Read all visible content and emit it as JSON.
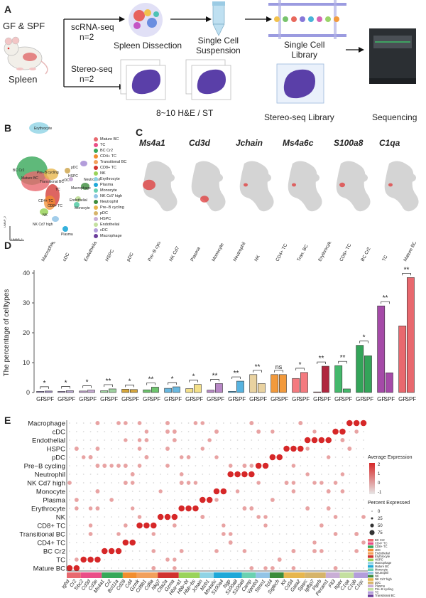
{
  "panel_labels": [
    "A",
    "B",
    "C",
    "D",
    "E"
  ],
  "panelA": {
    "source_label": "GF & SPF",
    "organism_label": "Spleen",
    "scrna_label": "scRNA-seq",
    "scrna_n": "n=2",
    "stereo_label": "Stereo-seq",
    "stereo_n": "n=2",
    "spleen_dissection": "Spleen Dissection",
    "single_cell_suspension": "Single Cell\nSuspension",
    "single_cell_library": "Single Cell\nLibrary",
    "he_st": "8~10 H&E / ST",
    "stereo_library": "Stereo-seq Library",
    "sequencing": "Sequencing"
  },
  "panelB": {
    "umap_labels": [
      "Erythrocyte",
      "BC Cr2",
      "Mature BC",
      "Pre−B cycling",
      "TC",
      "pDC",
      "HSPC",
      "cDC",
      "Neutrophil",
      "Transitional BC",
      "CD4+ TC",
      "CD8+ TC",
      "Endothelial",
      "NK",
      "Monocyte",
      "NK Cd7 high",
      "Plasma",
      "Macrophage"
    ],
    "axis_y": "UMAP_2",
    "axis_x": "UMAP_1",
    "legend": [
      {
        "name": "Mature BC",
        "color": "#e8696f"
      },
      {
        "name": "TC",
        "color": "#ea4e87"
      },
      {
        "name": "BC Cr2",
        "color": "#37a859"
      },
      {
        "name": "CD4+ TC",
        "color": "#f28e2f"
      },
      {
        "name": "Transitional BC",
        "color": "#f2a05c"
      },
      {
        "name": "CD8+ TC",
        "color": "#d1322e"
      },
      {
        "name": "NK",
        "color": "#9ad35a"
      },
      {
        "name": "Erythrocyte",
        "color": "#8fd3e5"
      },
      {
        "name": "Plasma",
        "color": "#1fa8d8"
      },
      {
        "name": "Monocyte",
        "color": "#6bd1b1"
      },
      {
        "name": "NK Cd7 high",
        "color": "#92c4e6"
      },
      {
        "name": "Neutrophil",
        "color": "#3c8c3c"
      },
      {
        "name": "Pre−B cycling",
        "color": "#e7b64e"
      },
      {
        "name": "pDC",
        "color": "#d6b46a"
      },
      {
        "name": "HSPC",
        "color": "#c9aed6"
      },
      {
        "name": "Endothelial",
        "color": "#c4e0a0"
      },
      {
        "name": "cDC",
        "color": "#b39ddb"
      },
      {
        "name": "Macrophage",
        "color": "#6a3d9a"
      }
    ]
  },
  "panelC": {
    "genes": [
      "Ms4a1",
      "Cd3d",
      "Jchain",
      "Ms4a6c",
      "S100a8",
      "C1qa"
    ]
  },
  "chart_data": [
    {
      "type": "bar",
      "title": "",
      "ylabel": "The percentage of celltypes",
      "xlabel": "",
      "ylim": [
        0,
        40
      ],
      "yticks": [
        0,
        10,
        20,
        30,
        40
      ],
      "group_labels": [
        "GF",
        "SPF"
      ],
      "categories": [
        "Macrophage",
        "cDC",
        "Endothelial",
        "HSPC",
        "pDC",
        "Pre−B cycling",
        "NK Cd7",
        "Plasma",
        "Monocyte",
        "Neutrophil",
        "NK",
        "CD4+ TC",
        "Tran. BC",
        "Erythrocyte",
        "CD8+ TC",
        "BC Cr2",
        "TC",
        "Mature BC"
      ],
      "colors": [
        "#a998c9",
        "#b7a4cf",
        "#c6a9d3",
        "#9fd2a0",
        "#d6a73c",
        "#6ec56e",
        "#68b8e0",
        "#f3e08a",
        "#b888c6",
        "#57b3e0",
        "#e9d2a0",
        "#f29a3c",
        "#f47a7f",
        "#b0273f",
        "#45b86c",
        "#33a459",
        "#a54aa8",
        "#e8686e"
      ],
      "series": [
        {
          "name": "GF",
          "values": [
            0.4,
            0.4,
            0.5,
            0.6,
            1.1,
            0.9,
            1.4,
            1.3,
            0.8,
            0.4,
            6.0,
            6.0,
            4.7,
            0.2,
            9.0,
            15.8,
            29.0,
            22.3
          ]
        },
        {
          "name": "SPF",
          "values": [
            0.5,
            0.6,
            0.8,
            1.2,
            1.0,
            1.8,
            1.9,
            2.7,
            3.0,
            3.8,
            3.0,
            6.0,
            6.7,
            8.8,
            1.2,
            12.3,
            6.6,
            38.5
          ]
        }
      ],
      "significance": [
        "*",
        "*",
        "*",
        "**",
        "*",
        "**",
        "*",
        "*",
        "**",
        "**",
        "**",
        "ns",
        "*",
        "**",
        "**",
        "*",
        "**",
        "**"
      ]
    },
    {
      "type": "scatter",
      "title": "",
      "ylabel": "",
      "xlabel": "",
      "categories": [
        "Ighd",
        "Cr2",
        "Trbc2",
        "Cd3d",
        "Cd3e",
        "Ms4a1",
        "Cr2",
        "Bcl11a",
        "Cd28",
        "Cd4",
        "Gzmk",
        "Cd8b1",
        "Cd8a",
        "Nkg7",
        "Ctla2a",
        "Gzma",
        "Hba−a1",
        "Hbb−bt",
        "Hbb−bs",
        "Jchain",
        "Mzb1",
        "Ms4a6c",
        "S100a4",
        "Ngp",
        "S100a8",
        "S100a9",
        "Camp",
        "Vpreb3",
        "Stmn1",
        "Tcf4",
        "Siglech",
        "Kit",
        "Cd34",
        "Gata2",
        "Sparc",
        "Igfbp7",
        "Ptprb",
        "Pecam1",
        "Flt3",
        "Itgax",
        "C1qa",
        "C1qb",
        "C1qc"
      ],
      "rows": [
        "Macrophage",
        "cDC",
        "Endothelial",
        "HSPC",
        "pDC",
        "Pre−B cycling",
        "Neutrophil",
        "NK Cd7 high",
        "Monocyte",
        "Plasma",
        "Erythrocyte",
        "NK",
        "CD8+ TC",
        "Transitional BC",
        "CD4+ TC",
        "BC Cr2",
        "TC",
        "Mature BC"
      ],
      "color_legend_title": "Average Expression",
      "color_ticks": [
        -1,
        0,
        1,
        2
      ],
      "size_legend_title": "Percent Expressed",
      "size_ticks": [
        0,
        25,
        50,
        75
      ],
      "group_colors": [
        "#e8696f",
        "#ea4e87",
        "#37a859",
        "#f28e2f",
        "#f2a05c",
        "#d1322e",
        "#9ad35a",
        "#8fd3e5",
        "#1fa8d8",
        "#6bd1b1",
        "#92c4e6",
        "#3c8c3c",
        "#e7b64e",
        "#d6b46a",
        "#c9aed6",
        "#c4e0a0",
        "#b39ddb",
        "#6a3d9a"
      ],
      "group_legend": [
        "BC Cr2",
        "CD4+ TC",
        "CD8+ TC",
        "cDC",
        "Endothelial",
        "Erythrocyte",
        "HSPC",
        "Macrophage",
        "Mature BC",
        "Monocyte",
        "Neutrophil",
        "NK",
        "NK Cd7 high",
        "pDC",
        "Plasma",
        "Pre−B cycling",
        "TC",
        "Transitional BC"
      ]
    }
  ]
}
